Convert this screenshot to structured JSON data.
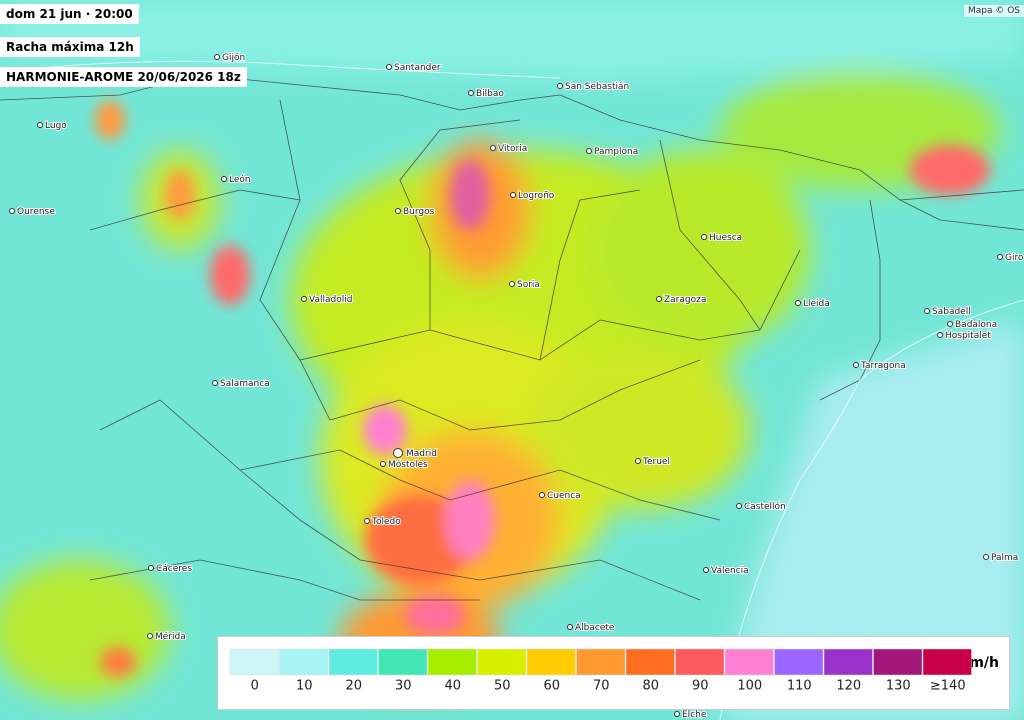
{
  "header": {
    "datetime": "dom 21 jun · 20:00",
    "variable": "Racha máxima 12h",
    "model": "HARMONIE-AROME 20/06/2026 18z"
  },
  "attribution": "Mapa © OS",
  "cities": [
    "Gijón",
    "Santander",
    "Bilbao",
    "San Sebastián",
    "Lugo",
    "Vitoria",
    "Pamplona",
    "León",
    "Ourense",
    "Burgos",
    "Logroño",
    "Huesca",
    "Soria",
    "Valladolid",
    "Zaragoza",
    "Lleida",
    "Giro",
    "Sabadell",
    "Badalona",
    "Hospitalet",
    "Tarragona",
    "Salamanca",
    "Madrid",
    "Móstoles",
    "Teruel",
    "Cuenca",
    "Toledo",
    "Castellón",
    "Cáceres",
    "Valencia",
    "Palma",
    "Mérida",
    "Albacete",
    "Elche"
  ],
  "legend": {
    "unit": "km/h",
    "items": [
      {
        "color": "#cdf6f6",
        "label": "0"
      },
      {
        "color": "#a8f4f4",
        "label": "10"
      },
      {
        "color": "#5eebe0",
        "label": "20"
      },
      {
        "color": "#42e6b4",
        "label": "30"
      },
      {
        "color": "#a6ee00",
        "label": "40"
      },
      {
        "color": "#d8f000",
        "label": "50"
      },
      {
        "color": "#ffcc00",
        "label": "60"
      },
      {
        "color": "#ff9a30",
        "label": "70"
      },
      {
        "color": "#ff6e20",
        "label": "80"
      },
      {
        "color": "#ff5a5e",
        "label": "90"
      },
      {
        "color": "#ff80d2",
        "label": "100"
      },
      {
        "color": "#9a66ff",
        "label": "110"
      },
      {
        "color": "#9a33cc",
        "label": "120"
      },
      {
        "color": "#a3167a",
        "label": "130"
      },
      {
        "color": "#c8004a",
        "label": "≥140"
      }
    ]
  }
}
